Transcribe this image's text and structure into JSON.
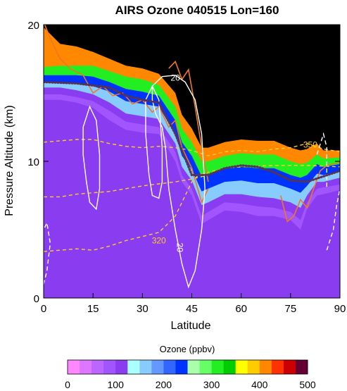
{
  "chart_data": {
    "type": "heatmap",
    "title": "AIRS Ozone 040515 Lon=160",
    "xlabel": "Latitude",
    "ylabel": "Pressure Altitude (km)",
    "xlim": [
      0,
      90
    ],
    "ylim": [
      0,
      20
    ],
    "x_ticks": [
      "0",
      "15",
      "30",
      "45",
      "60",
      "75",
      "90"
    ],
    "y_ticks": [
      "0",
      "10",
      "20"
    ],
    "colorbar": {
      "label": "Ozone (ppbv)",
      "range": [
        0,
        500
      ],
      "levels": 20,
      "ticks": [
        "0",
        "100",
        "200",
        "300",
        "400",
        "500"
      ],
      "colors": [
        "#ff88ff",
        "#dd77ff",
        "#bb66ff",
        "#a055ff",
        "#8a3cf0",
        "#aaffff",
        "#88ccff",
        "#6699ff",
        "#3366ff",
        "#0033ff",
        "#aaffaa",
        "#66ff66",
        "#22ee22",
        "#00cc00",
        "#ffff00",
        "#ffcc00",
        "#ff8800",
        "#ff3300",
        "#cc0000",
        "#660033"
      ]
    },
    "tropopause_dotted_line": {
      "x": [
        0,
        10,
        20,
        25,
        30,
        35,
        40,
        45,
        50,
        55,
        60,
        65,
        70,
        75,
        80,
        85,
        90
      ],
      "y": [
        15.8,
        15.7,
        15.4,
        14.8,
        14.5,
        14.3,
        12.0,
        9.0,
        9.0,
        9.5,
        9.7,
        9.6,
        9.2,
        8.6,
        8.5,
        8.9,
        9.3
      ]
    },
    "ozone_levels_ppbv": {
      "x": [
        0,
        5,
        10,
        15,
        20,
        25,
        30,
        35,
        40,
        42,
        45,
        48,
        50,
        55,
        60,
        65,
        70,
        75,
        78,
        80,
        83,
        85,
        90
      ],
      "layers": [
        {
          "ppbv": 75,
          "y": [
            14.5,
            14.5,
            14.3,
            13.9,
            13.0,
            12.3,
            12.1,
            12.0,
            10.0,
            8.5,
            7.5,
            5.4,
            5.7,
            6.4,
            6.3,
            6.0,
            6.0,
            5.7,
            5.0,
            6.5,
            7.5,
            7.6,
            7.9
          ]
        },
        {
          "ppbv": 100,
          "y": [
            14.9,
            14.9,
            14.7,
            14.4,
            13.7,
            12.9,
            12.7,
            12.5,
            10.7,
            9.0,
            8.0,
            6.0,
            6.3,
            7.0,
            6.9,
            6.7,
            6.6,
            6.3,
            5.7,
            7.0,
            8.0,
            8.1,
            8.3
          ]
        },
        {
          "ppbv": 150,
          "y": [
            15.4,
            15.4,
            15.2,
            14.9,
            14.3,
            13.5,
            13.3,
            13.1,
            11.3,
            9.6,
            8.6,
            6.8,
            7.0,
            7.6,
            7.6,
            7.4,
            7.3,
            7.0,
            6.6,
            7.5,
            8.5,
            8.5,
            8.8
          ]
        },
        {
          "ppbv": 225,
          "y": [
            15.8,
            15.8,
            15.7,
            15.5,
            15.1,
            14.4,
            14.2,
            14.0,
            12.0,
            10.4,
            9.4,
            7.8,
            8.0,
            8.5,
            8.6,
            8.4,
            8.4,
            8.0,
            7.7,
            8.2,
            9.1,
            9.0,
            9.3
          ]
        },
        {
          "ppbv": 300,
          "y": [
            16.3,
            16.3,
            16.3,
            16.2,
            15.8,
            15.3,
            15.1,
            14.8,
            13.0,
            11.4,
            10.4,
            8.9,
            9.0,
            9.5,
            9.6,
            9.5,
            9.5,
            9.0,
            8.8,
            9.0,
            9.8,
            9.6,
            9.8
          ]
        },
        {
          "ppbv": 400,
          "y": [
            16.9,
            17.0,
            17.0,
            17.0,
            16.6,
            16.2,
            16.0,
            15.6,
            14.0,
            12.4,
            11.4,
            10.0,
            10.0,
            10.4,
            10.6,
            10.5,
            10.5,
            10.0,
            9.8,
            9.9,
            10.5,
            10.2,
            10.3
          ]
        },
        {
          "ppbv": 500,
          "y": [
            19.8,
            18.6,
            18.4,
            18.0,
            17.5,
            17.0,
            16.8,
            16.4,
            15.0,
            13.4,
            12.4,
            11.0,
            11.0,
            11.4,
            11.6,
            11.5,
            11.5,
            11.0,
            10.8,
            10.9,
            11.3,
            10.8,
            10.8
          ]
        }
      ]
    },
    "white_contours": {
      "label": "20",
      "lines": [
        {
          "dash": false,
          "x": [
            33,
            36,
            40,
            43,
            46,
            48,
            49,
            48,
            46,
            44,
            42,
            40,
            38,
            37,
            36,
            34,
            33,
            33
          ],
          "y": [
            15.5,
            16.2,
            16.3,
            15.8,
            14.5,
            12.0,
            8.0,
            5.0,
            2.0,
            0.8,
            2.5,
            5.0,
            8.0,
            11.0,
            12.5,
            13.5,
            14.5,
            15.5
          ]
        },
        {
          "dash": false,
          "x": [
            31,
            33,
            35,
            36,
            36,
            35,
            33,
            32,
            31,
            31
          ],
          "y": [
            14.5,
            15.5,
            14.5,
            11.0,
            8.5,
            7.3,
            7.5,
            9.0,
            12.0,
            14.5
          ]
        },
        {
          "dash": false,
          "x": [
            12,
            14,
            16,
            17,
            17,
            16,
            14,
            13,
            12,
            12
          ],
          "y": [
            12.5,
            14.0,
            13.0,
            10.5,
            8.0,
            6.5,
            7.0,
            8.5,
            10.5,
            12.5
          ]
        },
        {
          "dash": true,
          "x": [
            86,
            88,
            89,
            90
          ],
          "y": [
            3.5,
            5.0,
            6.8,
            8.0
          ]
        },
        {
          "dash": true,
          "x": [
            83,
            85,
            86,
            86
          ],
          "y": [
            10.5,
            12.0,
            11.0,
            8.0
          ]
        },
        {
          "dash": true,
          "x": [
            0,
            1,
            2,
            1,
            0
          ],
          "y": [
            1.0,
            2.0,
            4.0,
            5.5,
            5.0
          ]
        }
      ]
    },
    "yellow_dashed_contours": {
      "labels": [
        "320",
        "350"
      ],
      "lines": [
        {
          "name": "320",
          "x": [
            0,
            5,
            10,
            15,
            20,
            25,
            30,
            35,
            38,
            40,
            42,
            45,
            47,
            50,
            55,
            60,
            70,
            80,
            90
          ],
          "y": [
            3.4,
            3.5,
            3.6,
            3.5,
            3.8,
            4.2,
            4.5,
            4.8,
            5.5,
            6.0,
            7.0,
            8.5,
            9.0,
            9.2,
            9.5,
            9.6,
            9.7,
            9.7,
            9.6
          ]
        },
        {
          "name": "350",
          "x": [
            0,
            5,
            10,
            15,
            20,
            25,
            30,
            35,
            40,
            45,
            50,
            55,
            60,
            65,
            70,
            75,
            80,
            85,
            90
          ],
          "y": [
            11.4,
            11.5,
            11.6,
            11.6,
            11.3,
            11.1,
            11.0,
            11.1,
            11.0,
            10.8,
            10.4,
            10.7,
            10.8,
            10.7,
            10.9,
            11.0,
            11.3,
            10.9,
            10.7
          ]
        },
        {
          "name": "mid",
          "x": [
            0,
            5,
            10,
            20,
            30,
            40,
            45,
            50
          ],
          "y": [
            7.4,
            7.4,
            7.6,
            7.8,
            8.2,
            8.5,
            8.7,
            9.0
          ]
        }
      ]
    },
    "orange_contours": {
      "lines": [
        {
          "x": [
            0,
            2,
            5,
            8,
            12,
            15,
            18,
            21,
            24,
            27,
            30,
            33,
            35,
            38,
            40,
            42,
            45,
            48,
            50
          ],
          "y": [
            20.2,
            19.0,
            17.5,
            16.8,
            16.3,
            15.0,
            15.5,
            14.8,
            15.0,
            14.2,
            14.5,
            13.6,
            14.0,
            12.5,
            13.0,
            11.0,
            9.5,
            7.0,
            8.0
          ]
        },
        {
          "x": [
            38,
            40,
            42,
            44,
            46,
            48,
            50
          ],
          "y": [
            16.8,
            17.3,
            16.0,
            16.7,
            14.0,
            11.0,
            8.5
          ]
        },
        {
          "x": [
            72,
            74,
            76,
            78,
            80,
            82,
            84,
            86,
            88,
            90
          ],
          "y": [
            7.5,
            5.6,
            6.0,
            7.2,
            6.6,
            8.0,
            9.3,
            9.7,
            9.8,
            9.9
          ]
        }
      ]
    }
  }
}
